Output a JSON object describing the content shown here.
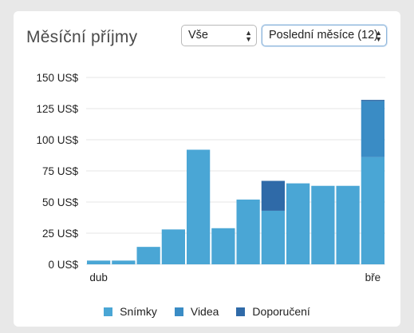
{
  "header": {
    "title": "Měsíční příjmy",
    "filter_select": "Vše",
    "period_select": "Poslední měsíce (12)"
  },
  "chart_data": {
    "type": "bar",
    "stacked": true,
    "categories": [
      "dub",
      "",
      "",
      "",
      "",
      "",
      "",
      "",
      "",
      "",
      "",
      "bře"
    ],
    "series": [
      {
        "name": "Snímky",
        "color": "#4aa6d5",
        "values": [
          3,
          3,
          14,
          28,
          92,
          29,
          52,
          43,
          65,
          63,
          63,
          86
        ]
      },
      {
        "name": "Videa",
        "color": "#3a8cc5",
        "values": [
          0,
          0,
          0,
          0,
          0,
          0,
          0,
          0,
          0,
          0,
          0,
          45
        ]
      },
      {
        "name": "Doporučení",
        "color": "#2f6aa8",
        "values": [
          0,
          0,
          0,
          0,
          0,
          0,
          0,
          24,
          0,
          0,
          0,
          1
        ]
      }
    ],
    "y_ticks": [
      "150 US$",
      "125 US$",
      "100 US$",
      "75 US$",
      "50 US$",
      "25 US$",
      "0 US$"
    ],
    "ylim": [
      0,
      150
    ],
    "legend_position": "bottom",
    "grid": true
  }
}
